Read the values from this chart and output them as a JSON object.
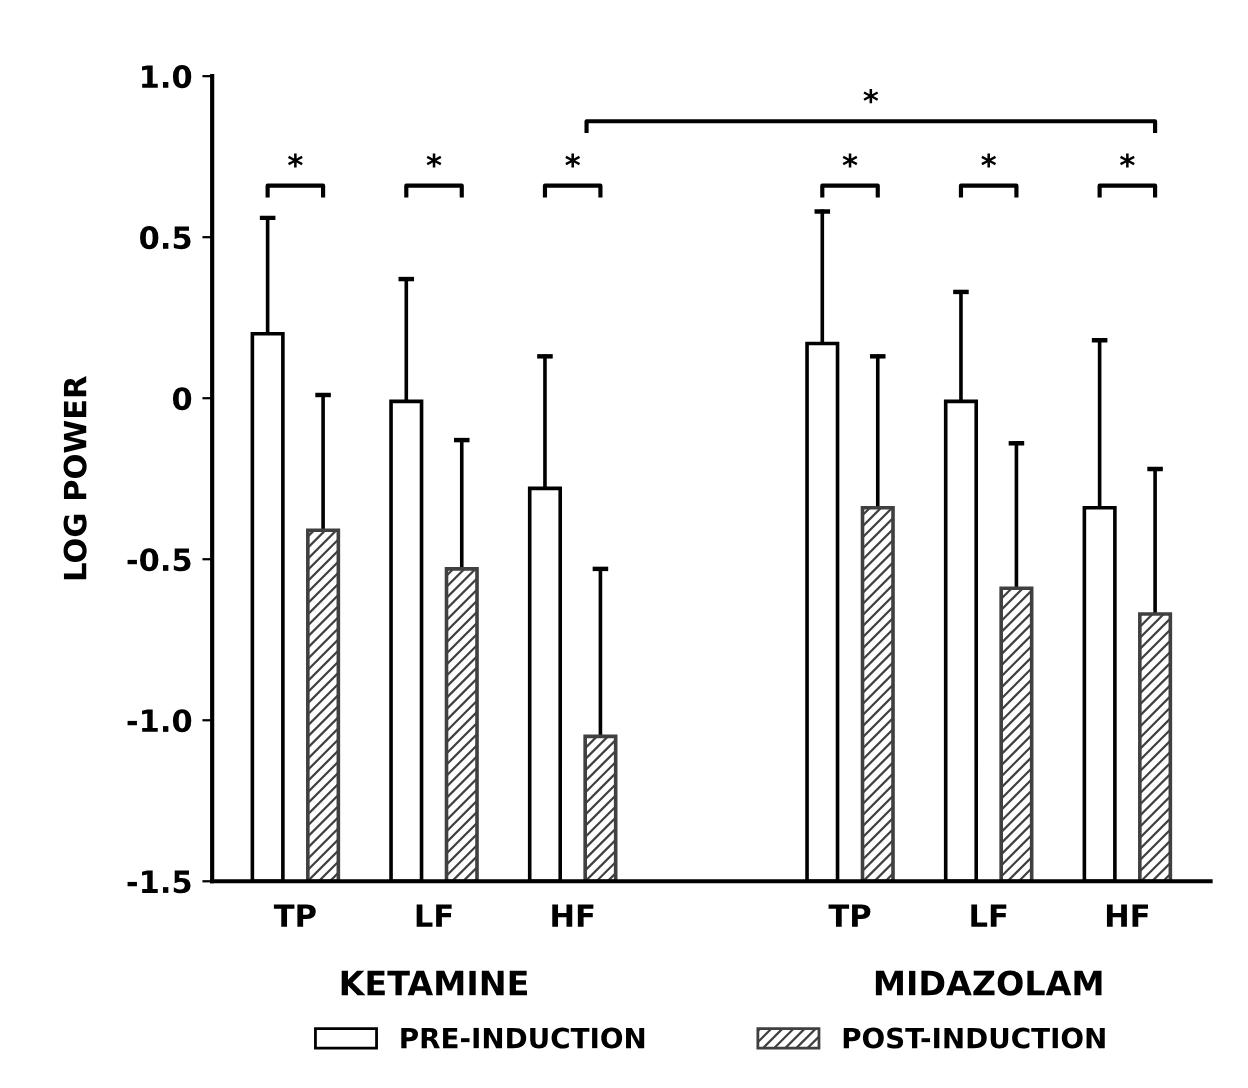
{
  "chart_data": {
    "type": "bar",
    "ylabel": "LOG POWER",
    "categories": [
      "TP",
      "LF",
      "HF",
      null,
      "TP",
      "LF",
      "HF"
    ],
    "series": [
      {
        "name": "PRE-INDUCTION",
        "color": "#ffffff",
        "base": [
          -1.5,
          -1.5,
          -1.5,
          null,
          -1.5,
          -1.5,
          -1.5
        ],
        "values": [
          1.7,
          1.49,
          1.22,
          null,
          1.67,
          1.49,
          1.16
        ],
        "errors": [
          [
            0.2,
            0.56
          ],
          [
            -0.01,
            0.37
          ],
          [
            -0.28,
            0.13
          ],
          null,
          [
            0.17,
            0.58
          ],
          [
            -0.01,
            0.33
          ],
          [
            -0.34,
            0.18
          ]
        ]
      },
      {
        "name": "POST-INDUCTION",
        "color": "#404040",
        "base": [
          -1.5,
          -1.5,
          -1.5,
          null,
          -1.5,
          -1.5,
          -1.5
        ],
        "values": [
          1.09,
          0.97,
          0.45,
          null,
          1.16,
          0.91,
          0.83
        ],
        "errors": [
          [
            -0.41,
            0.01
          ],
          [
            -0.53,
            -0.13
          ],
          [
            -1.05,
            -0.53
          ],
          null,
          [
            -0.34,
            0.13
          ],
          [
            -0.59,
            -0.14
          ],
          [
            -0.67,
            -0.22
          ]
        ]
      }
    ],
    "ylim": [
      -1.5,
      1.0
    ],
    "yticks": [
      {
        "value": 1.0,
        "label": "1.0"
      },
      0.5,
      0,
      {
        "value": -0.5,
        "label": "-0.5"
      },
      {
        "value": -1.0,
        "label": "-1.0"
      },
      {
        "value": -1.5,
        "label": "-1.5"
      }
    ],
    "grid": false,
    "legend": "bottom",
    "annotations": [
      "KETAMINE",
      "MIDAZOLAM",
      "*",
      "*",
      "*",
      "*",
      "*",
      "*",
      "*"
    ]
  }
}
